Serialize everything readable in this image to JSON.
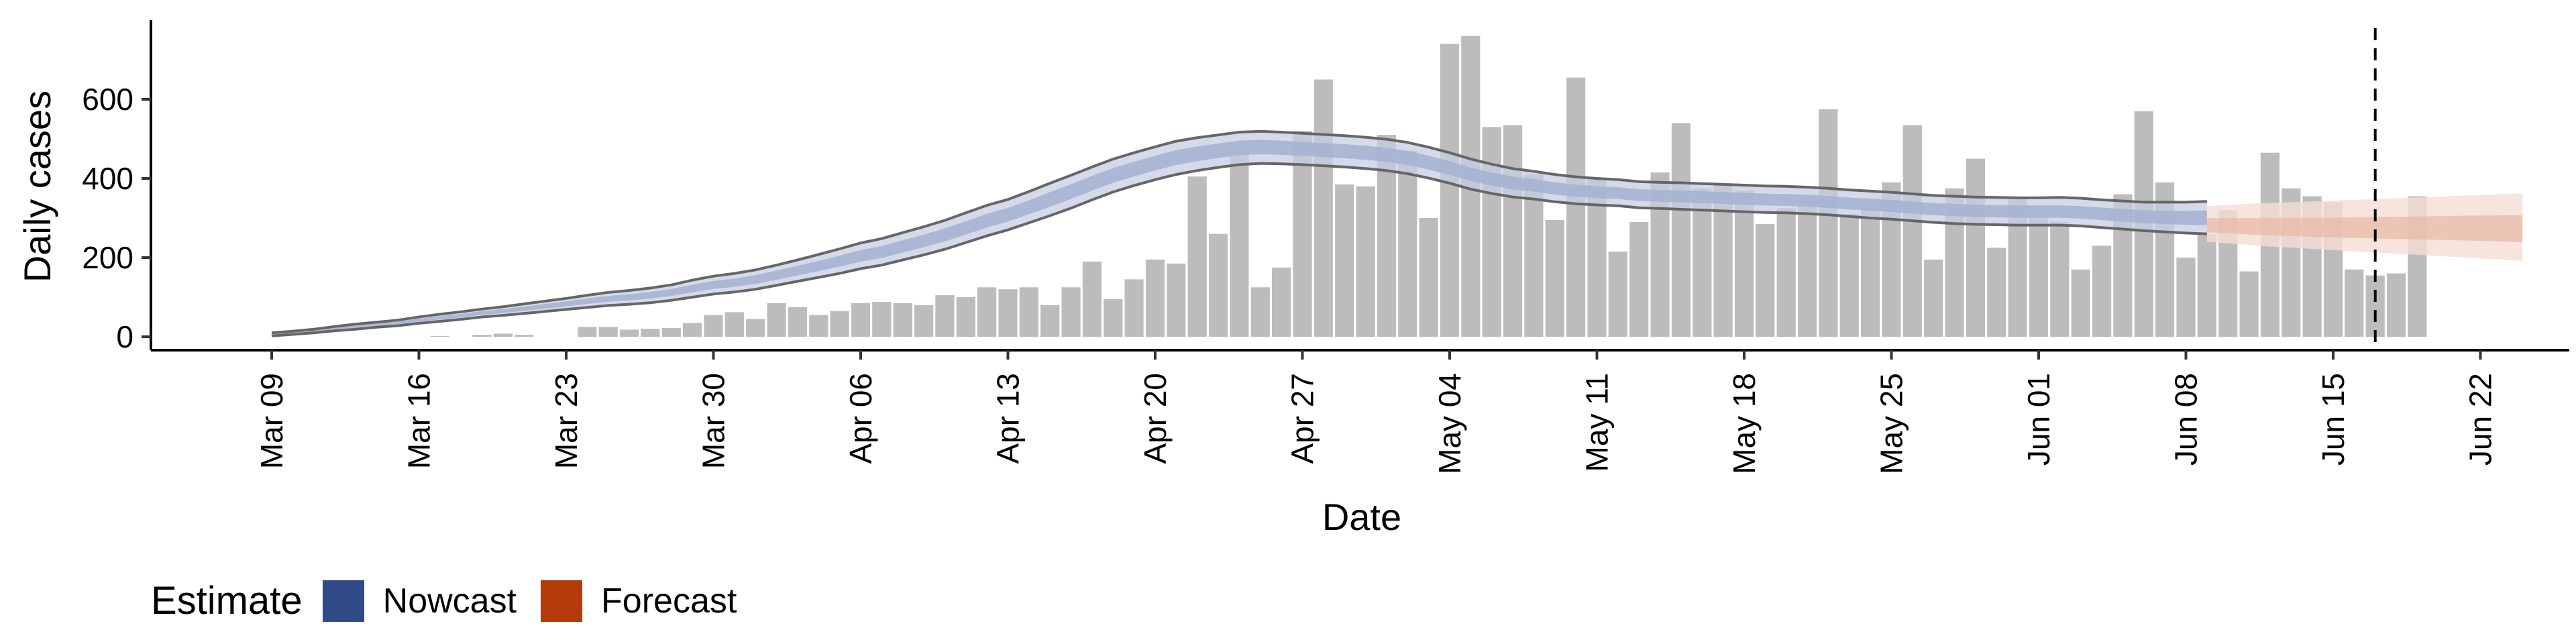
{
  "chart_data": {
    "type": "bar",
    "xlabel": "Date",
    "ylabel": "Daily cases",
    "ylim": [
      0,
      800
    ],
    "yticks": [
      0,
      200,
      400,
      600
    ],
    "xticks": [
      "Mar 09",
      "Mar 16",
      "Mar 23",
      "Mar 30",
      "Apr 06",
      "Apr 13",
      "Apr 20",
      "Apr 27",
      "May 04",
      "May 11",
      "May 18",
      "May 25",
      "Jun 01",
      "Jun 08",
      "Jun 15",
      "Jun 22"
    ],
    "x_start": "Mar 09",
    "vline_at": "Jun 17",
    "daily_cases": [
      0,
      0,
      0,
      0,
      0,
      0,
      0,
      0,
      2,
      0,
      5,
      8,
      5,
      0,
      0,
      25,
      25,
      18,
      20,
      22,
      35,
      55,
      62,
      45,
      85,
      75,
      55,
      65,
      85,
      88,
      85,
      80,
      105,
      100,
      125,
      120,
      125,
      80,
      125,
      190,
      95,
      145,
      195,
      185,
      405,
      260,
      470,
      125,
      175,
      520,
      650,
      385,
      380,
      510,
      470,
      300,
      740,
      760,
      530,
      535,
      410,
      295,
      655,
      400,
      215,
      290,
      415,
      540,
      375,
      385,
      370,
      285,
      325,
      345,
      575,
      310,
      340,
      390,
      535,
      195,
      375,
      450,
      225,
      350,
      320,
      290,
      170,
      230,
      360,
      570,
      390,
      200,
      260,
      320,
      165,
      465,
      375,
      355,
      340,
      170,
      155,
      160,
      355
    ],
    "nowcast": {
      "name": "Nowcast",
      "median": [
        5,
        9,
        14,
        20,
        25,
        30,
        35,
        42,
        48,
        53,
        60,
        65,
        71,
        77,
        83,
        90,
        96,
        100,
        105,
        112,
        122,
        131,
        137,
        145,
        156,
        167,
        179,
        191,
        204,
        214,
        228,
        242,
        257,
        275,
        293,
        308,
        327,
        347,
        367,
        388,
        408,
        424,
        439,
        453,
        463,
        471,
        478,
        480,
        478,
        475,
        472,
        469,
        465,
        460,
        452,
        440,
        426,
        410,
        398,
        388,
        382,
        374,
        368,
        365,
        362,
        357,
        355,
        354,
        352,
        350,
        348,
        346,
        345,
        343,
        340,
        336,
        333,
        330,
        326,
        322,
        320,
        318,
        317,
        316,
        316,
        316,
        314,
        310,
        306,
        303,
        301,
        300,
        300
      ],
      "lower": [
        2,
        6,
        10,
        15,
        19,
        24,
        28,
        34,
        39,
        44,
        50,
        54,
        59,
        64,
        69,
        74,
        79,
        82,
        86,
        92,
        100,
        108,
        113,
        120,
        130,
        140,
        150,
        160,
        172,
        181,
        194,
        207,
        221,
        238,
        255,
        270,
        288,
        306,
        325,
        346,
        366,
        382,
        397,
        410,
        420,
        428,
        435,
        438,
        437,
        435,
        432,
        429,
        425,
        420,
        412,
        401,
        388,
        373,
        362,
        353,
        348,
        341,
        336,
        333,
        331,
        326,
        324,
        322,
        320,
        318,
        316,
        314,
        313,
        311,
        308,
        304,
        300,
        297,
        293,
        289,
        286,
        284,
        283,
        282,
        282,
        282,
        280,
        276,
        272,
        268,
        265,
        262,
        260
      ],
      "upper": [
        10,
        14,
        19,
        26,
        32,
        37,
        42,
        50,
        57,
        63,
        70,
        76,
        83,
        90,
        97,
        105,
        112,
        117,
        123,
        131,
        143,
        153,
        160,
        169,
        181,
        194,
        208,
        222,
        237,
        248,
        263,
        278,
        294,
        313,
        332,
        347,
        367,
        388,
        408,
        429,
        449,
        465,
        480,
        494,
        503,
        510,
        517,
        519,
        517,
        514,
        511,
        508,
        504,
        499,
        491,
        479,
        465,
        449,
        436,
        425,
        418,
        410,
        404,
        400,
        397,
        392,
        390,
        389,
        387,
        385,
        383,
        381,
        380,
        378,
        375,
        371,
        368,
        365,
        361,
        357,
        355,
        353,
        352,
        351,
        351,
        352,
        350,
        346,
        343,
        340,
        340,
        340,
        342
      ]
    },
    "forecast": {
      "name": "Forecast",
      "median": [
        280,
        278,
        276,
        275,
        274,
        273,
        272,
        272,
        272,
        272,
        272,
        272,
        272,
        272,
        271,
        270
      ],
      "lower": [
        240,
        236,
        232,
        228,
        225,
        222,
        219,
        216,
        213,
        210,
        207,
        204,
        201,
        198,
        195,
        192
      ],
      "upper": [
        330,
        333,
        336,
        338,
        340,
        342,
        344,
        346,
        348,
        350,
        352,
        354,
        356,
        358,
        360,
        362
      ]
    },
    "legend": {
      "title": "Estimate",
      "items": [
        {
          "label": "Nowcast",
          "color": "#2f4a87"
        },
        {
          "label": "Forecast",
          "color": "#b33b0a"
        }
      ]
    },
    "colors": {
      "bar": "#bcbcbc",
      "nowcast_band": "#c6cde2",
      "nowcast_inner": "#a7b3d3",
      "forecast_band": "#f4ddd4",
      "forecast_inner": "#e8b8a4",
      "outline": "#666666"
    }
  }
}
